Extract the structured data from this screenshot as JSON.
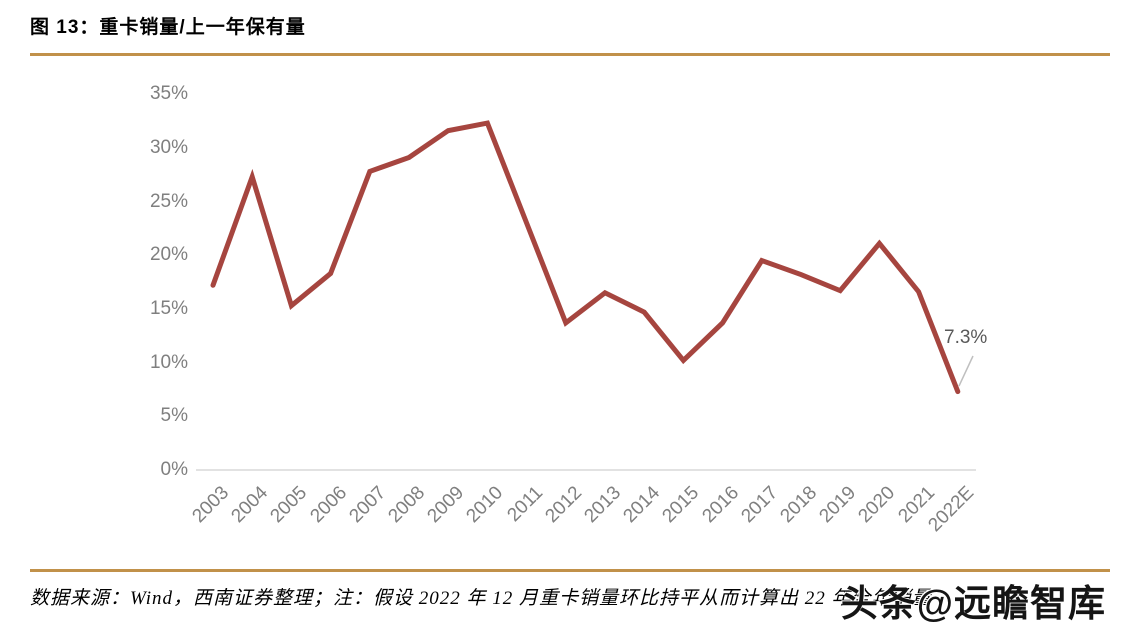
{
  "figure": {
    "title": "图 13：重卡销量/上一年保有量"
  },
  "chart_data": {
    "type": "line",
    "title": "图 13：重卡销量/上一年保有量",
    "categories": [
      "2003",
      "2004",
      "2005",
      "2006",
      "2007",
      "2008",
      "2009",
      "2010",
      "2011",
      "2012",
      "2013",
      "2014",
      "2015",
      "2016",
      "2017",
      "2018",
      "2019",
      "2020",
      "2021",
      "2022E"
    ],
    "series": [
      {
        "name": "重卡销量/上一年保有量",
        "values": [
          17.2,
          27.3,
          15.3,
          18.3,
          27.8,
          29.1,
          31.6,
          32.3,
          23.0,
          13.7,
          16.5,
          14.7,
          10.2,
          13.7,
          19.5,
          18.2,
          16.7,
          21.1,
          16.6,
          7.3
        ]
      }
    ],
    "xlabel": "",
    "ylabel": "",
    "ylim": [
      0,
      35
    ],
    "ytick_labels": [
      "0%",
      "5%",
      "10%",
      "15%",
      "20%",
      "25%",
      "30%",
      "35%"
    ],
    "grid": false,
    "legend_position": "none",
    "annotation": {
      "category": "2022E",
      "text": "7.3%"
    }
  },
  "colors": {
    "line": "#A6453F",
    "divider_gold": "#C1914A",
    "axis_line": "#D9D9D9",
    "tick_text": "#7F7F7F",
    "annotation_text": "#595959",
    "leader_line": "#BFBFBF"
  },
  "footer": {
    "note": "数据来源：Wind，西南证券整理；注：假设 2022 年 12 月重卡销量环比持平从而计算出 22 年全年销量"
  },
  "watermark": {
    "text": "头条@远瞻智库"
  }
}
